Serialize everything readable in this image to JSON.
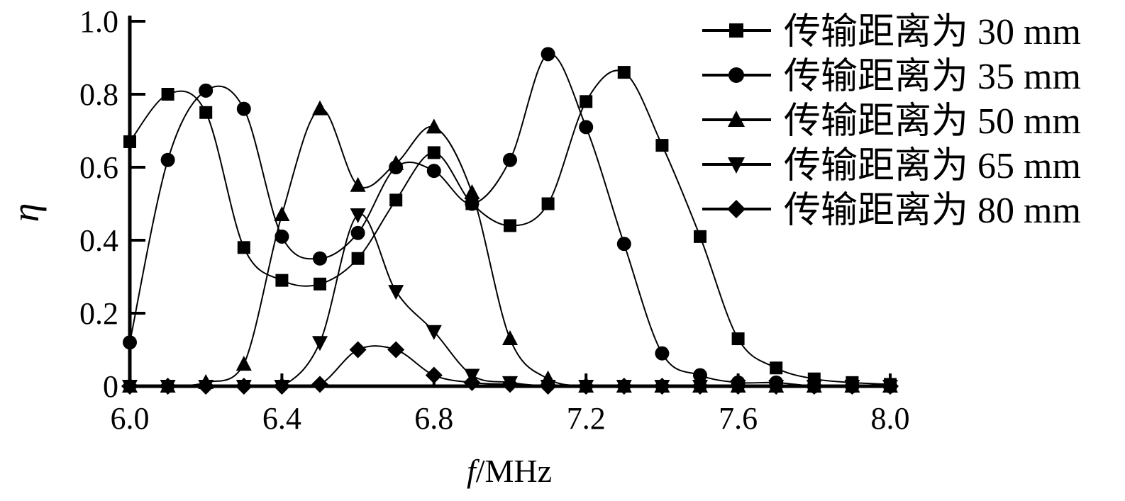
{
  "chart_data": {
    "type": "line",
    "title": "",
    "xlabel_italic": "f",
    "xlabel_rest": "/MHz",
    "ylabel": "η",
    "xlim": [
      6.0,
      8.0
    ],
    "ylim": [
      0,
      1.0
    ],
    "x_ticks": [
      "6.0",
      "6.4",
      "6.8",
      "7.2",
      "7.6",
      "8.0"
    ],
    "y_ticks": [
      "0",
      "0.2",
      "0.4",
      "0.6",
      "0.8",
      "1.0"
    ],
    "grid": false,
    "legend_position": "top-right",
    "x": [
      6.0,
      6.1,
      6.2,
      6.3,
      6.4,
      6.5,
      6.6,
      6.7,
      6.8,
      6.9,
      7.0,
      7.1,
      7.2,
      7.3,
      7.4,
      7.5,
      7.6,
      7.7,
      7.8,
      7.9,
      8.0
    ],
    "series": [
      {
        "name": "传输距离为 30 mm",
        "marker": "square",
        "values": [
          0.67,
          0.8,
          0.75,
          0.38,
          0.29,
          0.28,
          0.35,
          0.51,
          0.64,
          0.5,
          0.44,
          0.5,
          0.78,
          0.86,
          0.66,
          0.41,
          0.13,
          0.05,
          0.02,
          0.01,
          0.005
        ]
      },
      {
        "name": "传输距离为 35 mm",
        "marker": "circle",
        "values": [
          0.12,
          0.62,
          0.81,
          0.76,
          0.41,
          0.35,
          0.42,
          0.6,
          0.59,
          0.5,
          0.62,
          0.91,
          0.71,
          0.39,
          0.09,
          0.03,
          0.01,
          0.01,
          0.0,
          0.0,
          0.0
        ]
      },
      {
        "name": "传输距离为 50 mm",
        "marker": "triangle-up",
        "values": [
          0.0,
          0.0,
          0.01,
          0.06,
          0.47,
          0.76,
          0.55,
          0.61,
          0.71,
          0.53,
          0.13,
          0.02,
          0.0,
          0.0,
          0.0,
          0.0,
          0.0,
          0.0,
          0.0,
          0.0,
          0.0
        ]
      },
      {
        "name": "传输距离为 65 mm",
        "marker": "triangle-down",
        "values": [
          0.0,
          0.0,
          0.0,
          0.0,
          0.0,
          0.12,
          0.47,
          0.26,
          0.15,
          0.03,
          0.01,
          0.0,
          0.0,
          0.0,
          0.0,
          0.0,
          0.0,
          0.0,
          0.0,
          0.0,
          0.0
        ]
      },
      {
        "name": "传输距离为 80 mm",
        "marker": "diamond",
        "values": [
          0.0,
          0.0,
          0.0,
          0.0,
          0.0,
          0.005,
          0.1,
          0.1,
          0.03,
          0.01,
          0.005,
          0.0,
          0.0,
          0.0,
          0.0,
          0.0,
          0.0,
          0.0,
          0.0,
          0.0,
          0.0
        ]
      }
    ]
  }
}
